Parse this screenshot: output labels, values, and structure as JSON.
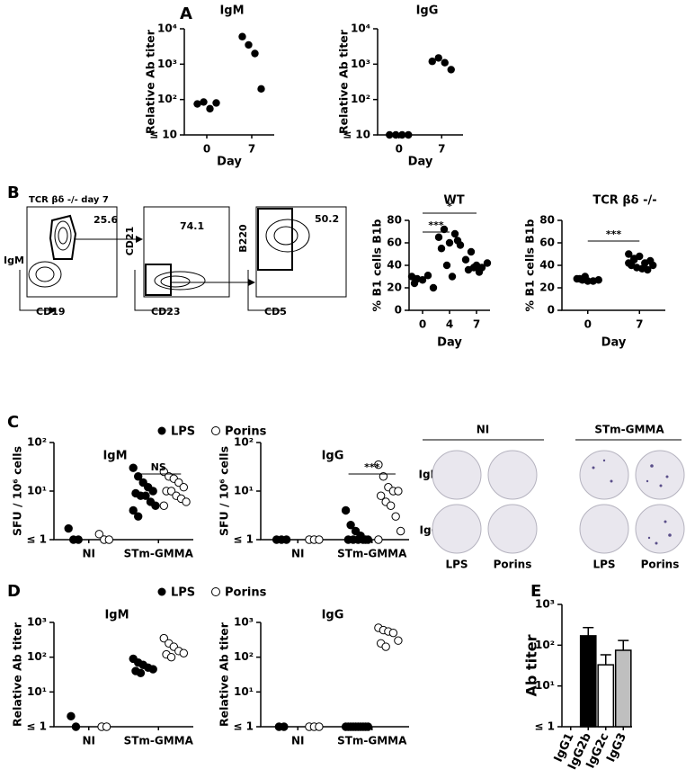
{
  "panels": [
    "A",
    "B",
    "C",
    "D",
    "E"
  ],
  "flow": {
    "title": "TCR βδ -/- day 7",
    "plots": [
      {
        "y": "IgM",
        "x": "CD19",
        "gate": "25.6"
      },
      {
        "y": "CD21",
        "x": "CD23",
        "gate": "74.1"
      },
      {
        "y": "B220",
        "x": "CD5",
        "gate": "50.2"
      }
    ]
  },
  "elispot": {
    "columns": [
      "NI",
      "STm-GMMA"
    ],
    "rows": [
      "IgM",
      "IgG"
    ],
    "wells": [
      "LPS",
      "Porins",
      "LPS",
      "Porins"
    ]
  },
  "chart_data": [
    {
      "type": "scatter",
      "title": "IgM",
      "xlabel": "Day",
      "ylabel": "Relative Ab titer",
      "log": true,
      "color": "#000000",
      "categories": [
        "0",
        "7"
      ],
      "values": [
        [
          75,
          85,
          55,
          80
        ],
        [
          6000,
          3500,
          2000,
          200
        ]
      ],
      "ylim": [
        10,
        10000
      ],
      "yticks": [
        {
          "value": 10,
          "label": "≤ 10"
        },
        {
          "value": 100,
          "label": "10²"
        },
        {
          "value": 1000,
          "label": "10³"
        },
        {
          "value": 10000,
          "label": "10⁴"
        }
      ]
    },
    {
      "type": "scatter",
      "title": "IgG",
      "xlabel": "Day",
      "ylabel": "Relative Ab titer",
      "log": true,
      "color": "#000000",
      "categories": [
        "0",
        "7"
      ],
      "values": [
        [
          10,
          10,
          10,
          10
        ],
        [
          1200,
          1500,
          1100,
          700
        ]
      ],
      "ylim": [
        10,
        10000
      ],
      "yticks": [
        {
          "value": 10,
          "label": "≤ 10"
        },
        {
          "value": 100,
          "label": "10²"
        },
        {
          "value": 1000,
          "label": "10³"
        },
        {
          "value": 10000,
          "label": "10⁴"
        }
      ]
    },
    {
      "type": "scatter",
      "title": "WT",
      "xlabel": "Day",
      "ylabel": "% B1 cells B1b",
      "log": false,
      "color": "#000000",
      "categories": [
        "0",
        "4",
        "7"
      ],
      "values": [
        [
          30,
          28,
          27,
          31,
          20,
          24
        ],
        [
          65,
          72,
          60,
          68,
          58,
          55,
          40,
          30,
          62
        ],
        [
          45,
          52,
          40,
          38,
          42,
          36,
          38,
          34
        ]
      ],
      "annotations": [
        "***",
        "*"
      ],
      "ylim": [
        0,
        80
      ],
      "yticks": [
        0,
        20,
        40,
        60,
        80
      ]
    },
    {
      "type": "scatter",
      "title": "TCR βδ -/-",
      "xlabel": "Day",
      "ylabel": "% B1 cells B1b",
      "log": false,
      "color": "#000000",
      "categories": [
        "0",
        "7"
      ],
      "values": [
        [
          28,
          27,
          26,
          26,
          27,
          28,
          30
        ],
        [
          50,
          46,
          48,
          42,
          44,
          40,
          38,
          37,
          36,
          40,
          42,
          45
        ]
      ],
      "annotations": [
        "***"
      ],
      "ylim": [
        0,
        80
      ],
      "yticks": [
        0,
        20,
        40,
        60,
        80
      ]
    },
    {
      "type": "scatter",
      "title": "IgM",
      "ylabel": "SFU / 10⁶ cells",
      "log": true,
      "categories": [
        "NI",
        "STm-GMMA"
      ],
      "series": [
        {
          "name": "LPS",
          "color": "#000000",
          "filled": true,
          "values": [
            [
              1.7,
              1,
              1
            ],
            [
              30,
              20,
              15,
              12,
              10,
              9,
              8,
              8,
              6,
              5,
              4,
              3
            ]
          ]
        },
        {
          "name": "Porins",
          "color": "#000000",
          "filled": false,
          "values": [
            [
              1.3,
              1,
              1
            ],
            [
              25,
              20,
              18,
              15,
              12,
              10,
              10,
              8,
              7,
              6,
              5
            ]
          ]
        }
      ],
      "annotations": [
        "NS"
      ],
      "ylim": [
        1,
        100
      ],
      "yticks": [
        {
          "value": 1,
          "label": "≤ 1"
        },
        {
          "value": 10,
          "label": "10¹"
        },
        {
          "value": 100,
          "label": "10²"
        }
      ]
    },
    {
      "type": "scatter",
      "title": "IgG",
      "ylabel": "SFU / 10⁶ cells",
      "log": true,
      "categories": [
        "NI",
        "STm-GMMA"
      ],
      "series": [
        {
          "color": "#000000",
          "filled": true,
          "values": [
            [
              1,
              1,
              1
            ],
            [
              4,
              2,
              1.5,
              1.2,
              1,
              1,
              1,
              1,
              1,
              1
            ]
          ]
        },
        {
          "color": "#000000",
          "filled": false,
          "values": [
            [
              1,
              1,
              1
            ],
            [
              35,
              20,
              12,
              10,
              10,
              8,
              6,
              5,
              3,
              1.5,
              1
            ]
          ]
        }
      ],
      "annotations": [
        "***"
      ],
      "ylim": [
        1,
        100
      ],
      "yticks": [
        {
          "value": 1,
          "label": "≤ 1"
        },
        {
          "value": 10,
          "label": "10¹"
        },
        {
          "value": 100,
          "label": "10²"
        }
      ]
    },
    {
      "type": "scatter",
      "title": "IgM",
      "ylabel": "Relative Ab titer",
      "log": true,
      "categories": [
        "NI",
        "STm-GMMA"
      ],
      "series": [
        {
          "name": "LPS",
          "color": "#000000",
          "filled": true,
          "values": [
            [
              2,
              1
            ],
            [
              90,
              70,
              60,
              50,
              45,
              40,
              35
            ]
          ]
        },
        {
          "name": "Porins",
          "color": "#000000",
          "filled": false,
          "values": [
            [
              1,
              1
            ],
            [
              350,
              250,
              200,
              150,
              130,
              120,
              100
            ]
          ]
        }
      ],
      "ylim": [
        1,
        1000
      ],
      "yticks": [
        {
          "value": 1,
          "label": "≤ 1"
        },
        {
          "value": 10,
          "label": "10¹"
        },
        {
          "value": 100,
          "label": "10²"
        },
        {
          "value": 1000,
          "label": "10³"
        }
      ]
    },
    {
      "type": "scatter",
      "title": "IgG",
      "ylabel": "Relative Ab titer",
      "log": true,
      "categories": [
        "NI",
        "STm-GMMA"
      ],
      "series": [
        {
          "color": "#000000",
          "filled": true,
          "values": [
            [
              1,
              1
            ],
            [
              1,
              1,
              1,
              1,
              1,
              1,
              1,
              1,
              1,
              1
            ]
          ]
        },
        {
          "color": "#000000",
          "filled": false,
          "values": [
            [
              1,
              1,
              1
            ],
            [
              700,
              600,
              550,
              500,
              300,
              250,
              200
            ]
          ]
        }
      ],
      "ylim": [
        1,
        1000
      ],
      "yticks": [
        {
          "value": 1,
          "label": "≤ 1"
        },
        {
          "value": 10,
          "label": "10¹"
        },
        {
          "value": 100,
          "label": "10²"
        },
        {
          "value": 1000,
          "label": "10³"
        }
      ]
    },
    {
      "type": "bar",
      "ylabel": "Ab titer",
      "log": true,
      "categories": [
        "IgG1",
        "IgG2b",
        "IgG2c",
        "IgG3"
      ],
      "values": [
        1,
        170,
        33,
        75
      ],
      "errors": [
        0,
        100,
        25,
        55
      ],
      "colors": [
        "#ffffff",
        "#000000",
        "#ffffff",
        "#bfbfbf"
      ],
      "ylim": [
        1,
        1000
      ],
      "yticks": [
        {
          "value": 1,
          "label": "≤ 1"
        },
        {
          "value": 10,
          "label": "10¹"
        },
        {
          "value": 100,
          "label": "10²"
        },
        {
          "value": 1000,
          "label": "10³"
        }
      ]
    }
  ]
}
